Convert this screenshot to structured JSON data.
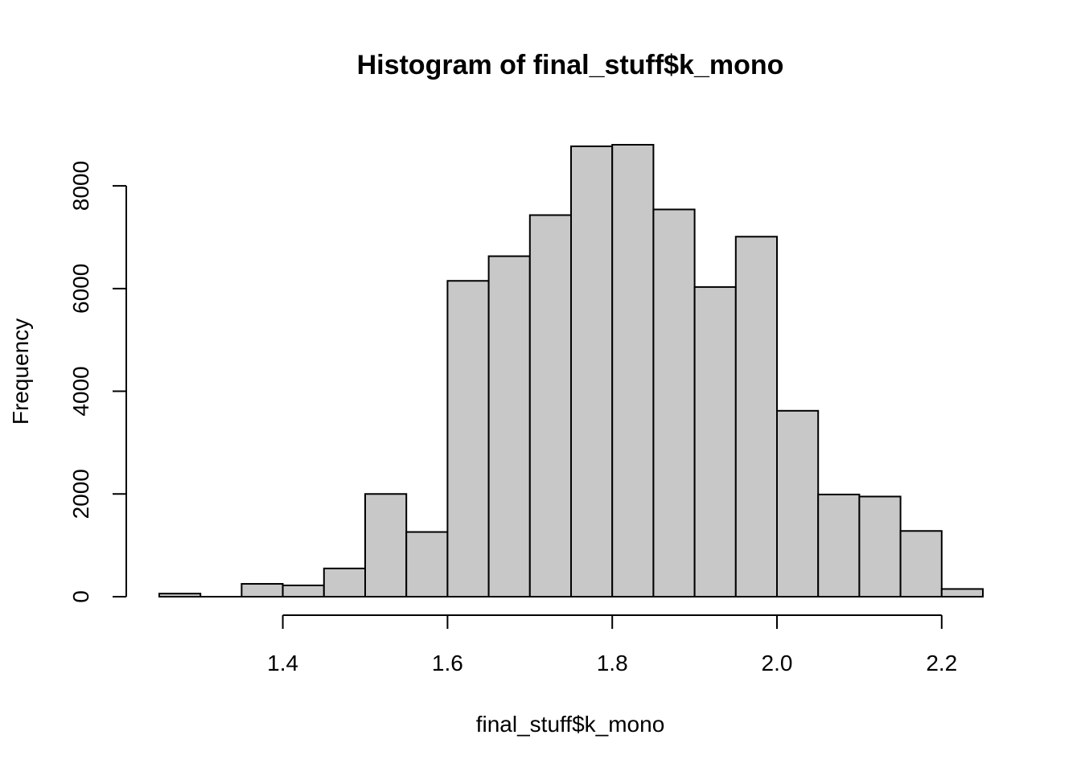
{
  "chart_data": {
    "type": "bar",
    "title": "Histogram of final_stuff$k_mono",
    "xlabel": "final_stuff$k_mono",
    "ylabel": "Frequency",
    "bins": [
      {
        "start": 1.25,
        "end": 1.3,
        "count": 60
      },
      {
        "start": 1.3,
        "end": 1.35,
        "count": 0
      },
      {
        "start": 1.35,
        "end": 1.4,
        "count": 250
      },
      {
        "start": 1.4,
        "end": 1.45,
        "count": 220
      },
      {
        "start": 1.45,
        "end": 1.5,
        "count": 550
      },
      {
        "start": 1.5,
        "end": 1.55,
        "count": 2000
      },
      {
        "start": 1.55,
        "end": 1.6,
        "count": 1260
      },
      {
        "start": 1.6,
        "end": 1.65,
        "count": 6150
      },
      {
        "start": 1.65,
        "end": 1.7,
        "count": 6630
      },
      {
        "start": 1.7,
        "end": 1.75,
        "count": 7430
      },
      {
        "start": 1.75,
        "end": 1.8,
        "count": 8770
      },
      {
        "start": 1.8,
        "end": 1.85,
        "count": 8800
      },
      {
        "start": 1.85,
        "end": 1.9,
        "count": 7540
      },
      {
        "start": 1.9,
        "end": 1.95,
        "count": 6030
      },
      {
        "start": 1.95,
        "end": 2.0,
        "count": 7010
      },
      {
        "start": 2.0,
        "end": 2.05,
        "count": 3620
      },
      {
        "start": 2.05,
        "end": 2.1,
        "count": 1990
      },
      {
        "start": 2.1,
        "end": 2.15,
        "count": 1950
      },
      {
        "start": 2.15,
        "end": 2.2,
        "count": 1280
      },
      {
        "start": 2.2,
        "end": 2.25,
        "count": 150
      }
    ],
    "xticks": [
      1.4,
      1.6,
      1.8,
      2.0,
      2.2
    ],
    "xtick_labels": [
      "1.4",
      "1.6",
      "1.8",
      "2.0",
      "2.2"
    ],
    "yticks": [
      0,
      2000,
      4000,
      6000,
      8000
    ],
    "ytick_labels": [
      "0",
      "2000",
      "4000",
      "6000",
      "8000"
    ],
    "xlim": [
      1.25,
      2.25
    ],
    "ylim": [
      0,
      8800
    ],
    "grid": false,
    "bar_fill": "#c8c8c8",
    "bar_stroke": "#000000"
  }
}
